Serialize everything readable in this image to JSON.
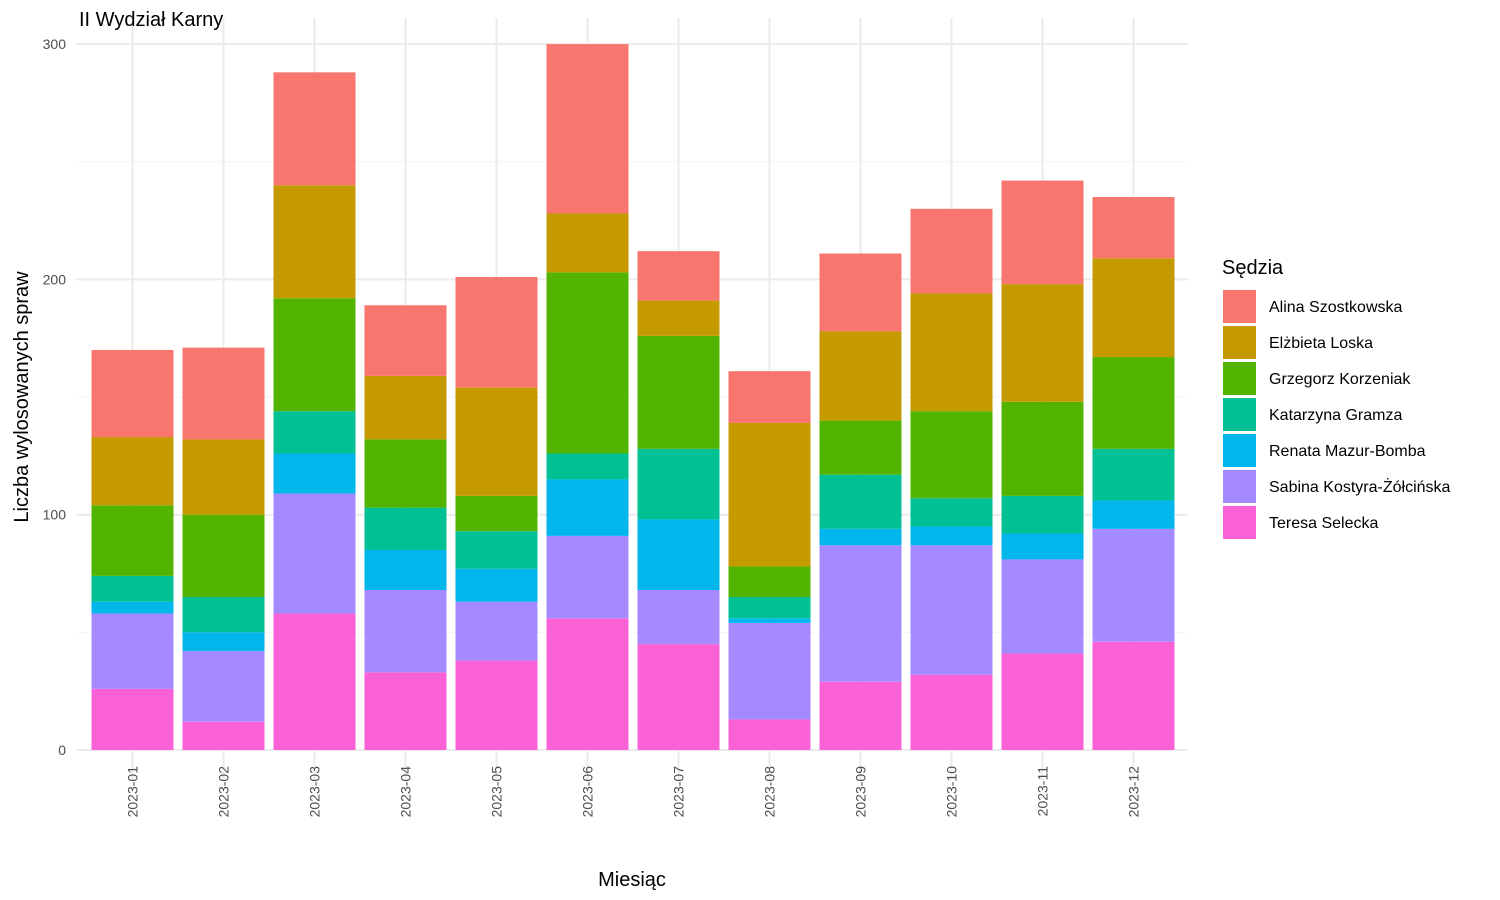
{
  "chart_data": {
    "type": "bar",
    "stacked": true,
    "title": "II Wydział Karny",
    "xlabel": "Miesiąc",
    "ylabel": "Liczba wylosowanych spraw",
    "ylim": [
      0,
      300
    ],
    "yticks": [
      0,
      100,
      200,
      300
    ],
    "grid": true,
    "legend": {
      "title": "Sędzia",
      "position": "right"
    },
    "categories": [
      "2023-01",
      "2023-02",
      "2023-03",
      "2023-04",
      "2023-05",
      "2023-06",
      "2023-07",
      "2023-08",
      "2023-09",
      "2023-10",
      "2023-11",
      "2023-12"
    ],
    "series": [
      {
        "name": "Teresa Selecka",
        "color": "#FB61D7",
        "values": [
          26,
          12,
          58,
          33,
          38,
          56,
          45,
          13,
          29,
          32,
          41,
          46
        ]
      },
      {
        "name": "Sabina Kostyra-Żółcińska",
        "color": "#A58AFF",
        "values": [
          32,
          30,
          51,
          35,
          25,
          35,
          23,
          41,
          58,
          55,
          40,
          48
        ]
      },
      {
        "name": "Renata Mazur-Bomba",
        "color": "#00B6EB",
        "values": [
          5,
          8,
          17,
          17,
          14,
          24,
          30,
          2,
          7,
          8,
          11,
          12
        ]
      },
      {
        "name": "Katarzyna Gramza",
        "color": "#00C094",
        "values": [
          11,
          15,
          18,
          18,
          16,
          11,
          30,
          9,
          23,
          12,
          16,
          22
        ]
      },
      {
        "name": "Grzegorz Korzeniak",
        "color": "#53B400",
        "values": [
          30,
          35,
          48,
          29,
          15,
          77,
          48,
          13,
          23,
          37,
          40,
          39
        ]
      },
      {
        "name": "Elżbieta Loska",
        "color": "#C49A00",
        "values": [
          29,
          32,
          48,
          27,
          46,
          25,
          15,
          61,
          38,
          50,
          50,
          42
        ]
      },
      {
        "name": "Alina Szostkowska",
        "color": "#F8766D",
        "values": [
          37,
          39,
          48,
          30,
          47,
          72,
          21,
          22,
          33,
          36,
          44,
          26
        ]
      }
    ],
    "legend_order": [
      "Alina Szostkowska",
      "Elżbieta Loska",
      "Grzegorz Korzeniak",
      "Katarzyna Gramza",
      "Renata Mazur-Bomba",
      "Sabina Kostyra-Żółcińska",
      "Teresa Selecka"
    ]
  }
}
